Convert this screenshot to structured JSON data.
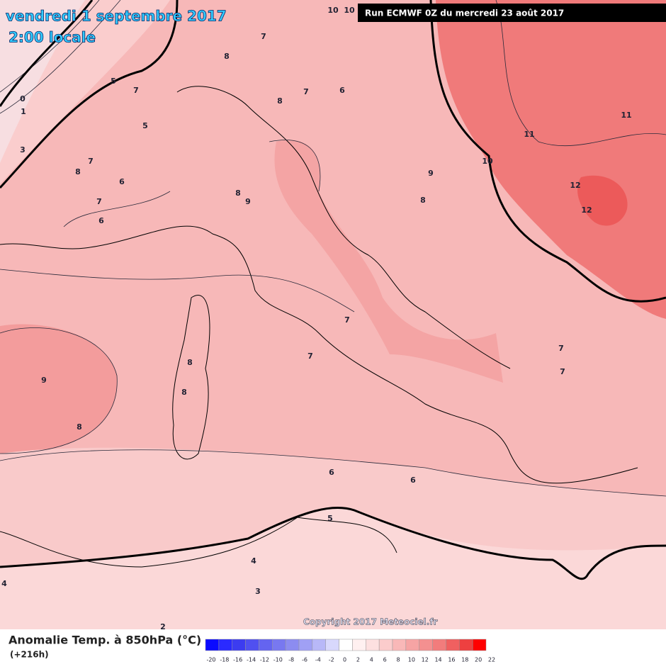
{
  "header": {
    "date": "vendredi 1 septembre 2017",
    "time": "2:00 locale",
    "run": "Run ECMWF 0Z du mercredi 23 août 2017"
  },
  "map": {
    "contour_labels": [
      0,
      1,
      3,
      5,
      7,
      5,
      7,
      8,
      6,
      7,
      6,
      7,
      8,
      8,
      7,
      6,
      8,
      9,
      9,
      8,
      11,
      11,
      10,
      12,
      12,
      10,
      10,
      9,
      8,
      8,
      8,
      7,
      7,
      7,
      7,
      6,
      6,
      5,
      4,
      3,
      4,
      2
    ]
  },
  "footer": {
    "copyright": "Copyright 2017 Meteociel.fr",
    "title": "Anomalie Temp. à 850hPa (°C)",
    "lead": "(+216h)"
  },
  "legend": {
    "ticks": [
      -20,
      -18,
      -16,
      -14,
      -12,
      -10,
      -8,
      -6,
      -4,
      -2,
      0,
      2,
      4,
      6,
      8,
      10,
      12,
      14,
      16,
      18,
      20,
      22
    ],
    "colors": [
      "#0a0aff",
      "#2a2aff",
      "#3c3cf0",
      "#5050f0",
      "#6464f0",
      "#7878f0",
      "#8c8cf0",
      "#a0a0f5",
      "#b8b8f8",
      "#d8d8fc",
      "#ffffff",
      "#fff0f0",
      "#fde0e0",
      "#fbcccc",
      "#f9b8b8",
      "#f6a4a4",
      "#f49090",
      "#f27c7c",
      "#f06060",
      "#ee4040",
      "#ff0000"
    ]
  }
}
